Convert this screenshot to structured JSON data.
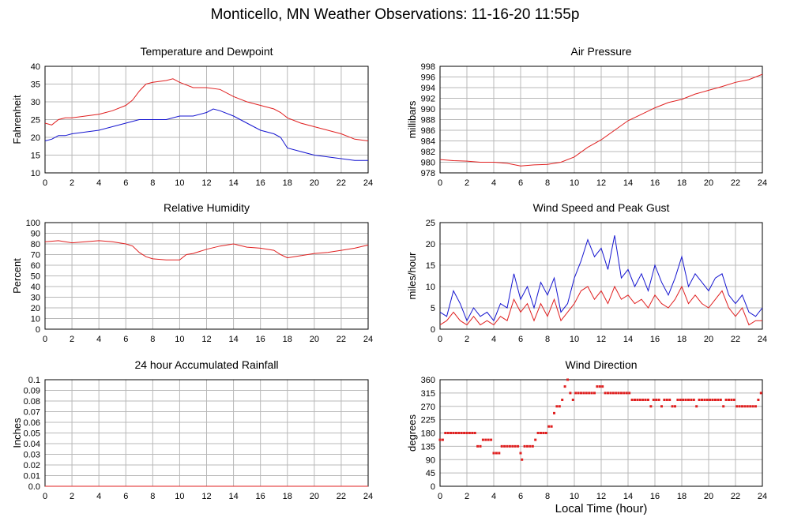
{
  "title": "Monticello, MN Weather Observations: 11-16-20 11:55p",
  "xlabel": "Local Time (hour)",
  "chart_data": [
    {
      "id": "temp",
      "type": "line",
      "title": "Temperature and Dewpoint",
      "ylabel": "Fahrenheit",
      "xlim": [
        0,
        24
      ],
      "ylim": [
        10,
        40
      ],
      "xticks": [
        0,
        2,
        4,
        6,
        8,
        10,
        12,
        14,
        16,
        18,
        20,
        22,
        24
      ],
      "yticks": [
        10,
        15,
        20,
        25,
        30,
        35,
        40
      ],
      "grid": true,
      "series": [
        {
          "color": "#e02020",
          "x": [
            0,
            0.5,
            1,
            1.5,
            2,
            3,
            4,
            5,
            6,
            6.5,
            7,
            7.5,
            8,
            9,
            9.5,
            10,
            11,
            12,
            13,
            14,
            15,
            16,
            17,
            17.5,
            18,
            19,
            20,
            21,
            22,
            23,
            24
          ],
          "y": [
            24,
            23.5,
            25,
            25.5,
            25.5,
            26,
            26.5,
            27.5,
            29,
            30.5,
            33,
            35,
            35.5,
            36,
            36.5,
            35.5,
            34,
            34,
            33.5,
            31.5,
            30,
            29,
            28,
            27,
            25.5,
            24,
            23,
            22,
            21,
            19.5,
            19
          ]
        },
        {
          "color": "#1515d0",
          "x": [
            0,
            0.5,
            1,
            1.5,
            2,
            3,
            4,
            5,
            6,
            7,
            8,
            9,
            10,
            11,
            12,
            12.5,
            13,
            14,
            15,
            16,
            17,
            17.5,
            18,
            19,
            20,
            21,
            22,
            23,
            24
          ],
          "y": [
            19,
            19.5,
            20.5,
            20.5,
            21,
            21.5,
            22,
            23,
            24,
            25,
            25,
            25,
            26,
            26,
            27,
            28,
            27.5,
            26,
            24,
            22,
            21,
            20,
            17,
            16,
            15,
            14.5,
            14,
            13.5,
            13.5
          ]
        }
      ]
    },
    {
      "id": "pressure",
      "type": "line",
      "title": "Air Pressure",
      "ylabel": "millibars",
      "xlim": [
        0,
        24
      ],
      "ylim": [
        978,
        998
      ],
      "xticks": [
        0,
        2,
        4,
        6,
        8,
        10,
        12,
        14,
        16,
        18,
        20,
        22,
        24
      ],
      "yticks": [
        978,
        980,
        982,
        984,
        986,
        988,
        990,
        992,
        994,
        996,
        998
      ],
      "grid": true,
      "series": [
        {
          "color": "#e02020",
          "x": [
            0,
            1,
            2,
            3,
            4,
            5,
            6,
            7,
            8,
            9,
            10,
            11,
            12,
            13,
            14,
            15,
            16,
            17,
            18,
            19,
            20,
            21,
            22,
            23,
            24
          ],
          "y": [
            980.5,
            980.3,
            980.2,
            980,
            980,
            979.8,
            979.3,
            979.5,
            979.6,
            980,
            981,
            982.8,
            984.2,
            986,
            987.8,
            989,
            990.2,
            991.2,
            991.8,
            992.8,
            993.5,
            994.2,
            995,
            995.5,
            996.5
          ]
        }
      ]
    },
    {
      "id": "humidity",
      "type": "line",
      "title": "Relative Humidity",
      "ylabel": "Percent",
      "xlim": [
        0,
        24
      ],
      "ylim": [
        0,
        100
      ],
      "xticks": [
        0,
        2,
        4,
        6,
        8,
        10,
        12,
        14,
        16,
        18,
        20,
        22,
        24
      ],
      "yticks": [
        0,
        10,
        20,
        30,
        40,
        50,
        60,
        70,
        80,
        90,
        100
      ],
      "grid": true,
      "series": [
        {
          "color": "#e02020",
          "x": [
            0,
            1,
            2,
            3,
            4,
            5,
            6,
            6.5,
            7,
            7.5,
            8,
            9,
            10,
            10.5,
            11,
            12,
            13,
            14,
            15,
            16,
            17,
            17.5,
            18,
            19,
            20,
            21,
            22,
            23,
            24
          ],
          "y": [
            82,
            83,
            81,
            82,
            83,
            82,
            80,
            78,
            72,
            68,
            66,
            65,
            65,
            70,
            71,
            75,
            78,
            80,
            77,
            76,
            74,
            70,
            67,
            69,
            71,
            72,
            74,
            76,
            79
          ]
        }
      ]
    },
    {
      "id": "wind",
      "type": "line",
      "title": "Wind Speed and Peak Gust",
      "ylabel": "miles/hour",
      "xlim": [
        0,
        24
      ],
      "ylim": [
        0,
        25
      ],
      "xticks": [
        0,
        2,
        4,
        6,
        8,
        10,
        12,
        14,
        16,
        18,
        20,
        22,
        24
      ],
      "yticks": [
        0,
        5,
        10,
        15,
        20,
        25
      ],
      "grid": true,
      "series": [
        {
          "color": "#1515d0",
          "x": [
            0,
            0.5,
            1,
            1.5,
            2,
            2.5,
            3,
            3.5,
            4,
            4.5,
            5,
            5.5,
            6,
            6.5,
            7,
            7.5,
            8,
            8.5,
            9,
            9.5,
            10,
            10.5,
            11,
            11.5,
            12,
            12.5,
            13,
            13.5,
            14,
            14.5,
            15,
            15.5,
            16,
            16.5,
            17,
            17.5,
            18,
            18.5,
            19,
            19.5,
            20,
            20.5,
            21,
            21.5,
            22,
            22.5,
            23,
            23.5,
            24
          ],
          "y": [
            4,
            3,
            9,
            6,
            2,
            5,
            3,
            4,
            2,
            6,
            5,
            13,
            7,
            10,
            5,
            11,
            8,
            12,
            4,
            6,
            12,
            16,
            21,
            17,
            19,
            14,
            22,
            12,
            14,
            10,
            13,
            9,
            15,
            11,
            8,
            12,
            17,
            10,
            13,
            11,
            9,
            12,
            13,
            8,
            6,
            8,
            4,
            3,
            5
          ]
        },
        {
          "color": "#e02020",
          "x": [
            0,
            0.5,
            1,
            1.5,
            2,
            2.5,
            3,
            3.5,
            4,
            4.5,
            5,
            5.5,
            6,
            6.5,
            7,
            7.5,
            8,
            8.5,
            9,
            9.5,
            10,
            10.5,
            11,
            11.5,
            12,
            12.5,
            13,
            13.5,
            14,
            14.5,
            15,
            15.5,
            16,
            16.5,
            17,
            17.5,
            18,
            18.5,
            19,
            19.5,
            20,
            20.5,
            21,
            21.5,
            22,
            22.5,
            23,
            23.5,
            24
          ],
          "y": [
            1,
            2,
            4,
            2,
            1,
            3,
            1,
            2,
            1,
            3,
            2,
            7,
            4,
            6,
            2,
            6,
            3,
            7,
            2,
            4,
            6,
            9,
            10,
            7,
            9,
            6,
            10,
            7,
            8,
            6,
            7,
            5,
            8,
            6,
            5,
            7,
            10,
            6,
            8,
            6,
            5,
            7,
            9,
            5,
            3,
            5,
            1,
            2,
            2
          ]
        }
      ]
    },
    {
      "id": "rain",
      "type": "line",
      "title": "24 hour Accumulated Rainfall",
      "ylabel": "Inches",
      "xlim": [
        0,
        24
      ],
      "ylim": [
        0,
        0.1
      ],
      "xticks": [
        0,
        2,
        4,
        6,
        8,
        10,
        12,
        14,
        16,
        18,
        20,
        22,
        24
      ],
      "yticks": [
        "0.0",
        "0.01",
        "0.02",
        "0.03",
        "0.04",
        "0.05",
        "0.06",
        "0.07",
        "0.08",
        "0.09",
        "0.1"
      ],
      "grid": true,
      "series": [
        {
          "color": "#e02020",
          "x": [
            0,
            24
          ],
          "y": [
            0,
            0
          ]
        }
      ]
    },
    {
      "id": "direction",
      "type": "scatter",
      "title": "Wind Direction",
      "ylabel": "degrees",
      "xlim": [
        0,
        24
      ],
      "ylim": [
        0,
        360
      ],
      "xticks": [
        0,
        2,
        4,
        6,
        8,
        10,
        12,
        14,
        16,
        18,
        20,
        22,
        24
      ],
      "yticks": [
        0,
        45,
        90,
        135,
        180,
        225,
        270,
        315,
        360
      ],
      "grid": true,
      "series": [
        {
          "color": "#e02020",
          "x": [
            0,
            0.2,
            0.4,
            0.6,
            0.8,
            1,
            1.2,
            1.4,
            1.6,
            1.8,
            2,
            2.2,
            2.4,
            2.6,
            2.8,
            3,
            3.2,
            3.4,
            3.6,
            3.8,
            4,
            4.2,
            4.4,
            4.6,
            4.8,
            5,
            5.2,
            5.4,
            5.6,
            5.8,
            6,
            6.1,
            6.3,
            6.5,
            6.7,
            6.9,
            7.1,
            7.3,
            7.5,
            7.7,
            7.9,
            8.1,
            8.3,
            8.5,
            8.7,
            8.9,
            9.1,
            9.3,
            9.5,
            9.7,
            9.9,
            10.1,
            10.3,
            10.5,
            10.7,
            10.9,
            11.1,
            11.3,
            11.5,
            11.7,
            11.9,
            12.1,
            12.3,
            12.5,
            12.7,
            12.9,
            13.1,
            13.3,
            13.5,
            13.7,
            13.9,
            14.1,
            14.3,
            14.5,
            14.7,
            14.9,
            15.1,
            15.3,
            15.5,
            15.7,
            15.9,
            16.1,
            16.3,
            16.5,
            16.7,
            16.9,
            17.1,
            17.3,
            17.5,
            17.7,
            17.9,
            18.1,
            18.3,
            18.5,
            18.7,
            18.9,
            19.1,
            19.3,
            19.5,
            19.7,
            19.9,
            20.1,
            20.3,
            20.5,
            20.7,
            20.9,
            21.1,
            21.3,
            21.5,
            21.7,
            21.9,
            22.1,
            22.3,
            22.5,
            22.7,
            22.9,
            23.1,
            23.3,
            23.5,
            23.7,
            23.9
          ],
          "y": [
            157,
            157,
            180,
            180,
            180,
            180,
            180,
            180,
            180,
            180,
            180,
            180,
            180,
            180,
            135,
            135,
            157,
            157,
            157,
            157,
            112,
            112,
            112,
            135,
            135,
            135,
            135,
            135,
            135,
            135,
            112,
            90,
            135,
            135,
            135,
            135,
            157,
            180,
            180,
            180,
            180,
            202,
            202,
            247,
            270,
            270,
            292,
            337,
            360,
            315,
            292,
            315,
            315,
            315,
            315,
            315,
            315,
            315,
            315,
            337,
            337,
            337,
            315,
            315,
            315,
            315,
            315,
            315,
            315,
            315,
            315,
            315,
            292,
            292,
            292,
            292,
            292,
            292,
            292,
            270,
            292,
            292,
            292,
            270,
            292,
            292,
            292,
            270,
            270,
            292,
            292,
            292,
            292,
            292,
            292,
            292,
            270,
            292,
            292,
            292,
            292,
            292,
            292,
            292,
            292,
            292,
            270,
            292,
            292,
            292,
            292,
            270,
            270,
            270,
            270,
            270,
            270,
            270,
            270,
            292,
            315
          ]
        }
      ]
    }
  ]
}
